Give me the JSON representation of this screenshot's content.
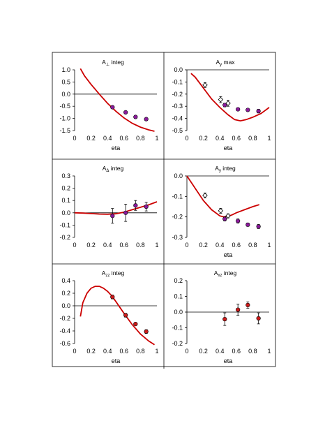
{
  "chart_data": [
    {
      "type": "scatter",
      "title": "A⊥ integ",
      "title_main": "A",
      "title_sub": "⊥",
      "title_rest": " integ",
      "xlabel": "eta",
      "ylabel": "",
      "xlim": [
        0,
        1
      ],
      "ylim": [
        -1.5,
        1.0
      ],
      "xticks": [
        0,
        0.2,
        0.4,
        0.6,
        0.8,
        1
      ],
      "xtick_labels": [
        "0",
        "0.2",
        "0.4",
        "0.6",
        "0.8",
        "1"
      ],
      "yticks": [
        1.0,
        0.5,
        0.0,
        -0.5,
        -1.0,
        -1.5
      ],
      "ytick_labels": [
        "1.0",
        "0.5",
        "0.0",
        "-0.5",
        "-1.0",
        "-1.5"
      ],
      "zero_line": true,
      "curve": {
        "x": [
          0.07,
          0.12,
          0.2,
          0.3,
          0.4,
          0.5,
          0.6,
          0.7,
          0.8,
          0.9,
          0.97
        ],
        "y": [
          1.05,
          0.75,
          0.4,
          0.0,
          -0.38,
          -0.7,
          -0.98,
          -1.2,
          -1.36,
          -1.47,
          -1.53
        ]
      },
      "points_filled": {
        "x": [
          0.46,
          0.62,
          0.74,
          0.87
        ],
        "y": [
          -0.54,
          -0.75,
          -0.94,
          -1.03
        ],
        "err": [
          0.04,
          0.04,
          0.06,
          0.04
        ]
      },
      "points_open": {
        "x": [],
        "y": [],
        "err": []
      },
      "colors": {
        "curve": "#cc0000",
        "filled": "#8a1a9a"
      }
    },
    {
      "type": "scatter",
      "title": "Ay max",
      "title_main": "A",
      "title_sub": "y",
      "title_rest": " max",
      "xlabel": "eta",
      "ylabel": "",
      "xlim": [
        0,
        1
      ],
      "ylim": [
        -0.5,
        0.0
      ],
      "xticks": [
        0,
        0.2,
        0.4,
        0.6,
        0.8,
        1
      ],
      "xtick_labels": [
        "0",
        "0.2",
        "0.4",
        "0.6",
        "0.8",
        "1"
      ],
      "yticks": [
        0.0,
        -0.1,
        -0.2,
        -0.3,
        -0.4,
        -0.5
      ],
      "ytick_labels": [
        "0.0",
        "-0.1",
        "-0.2",
        "-0.3",
        "-0.4",
        "-0.5"
      ],
      "zero_line": true,
      "curve": {
        "x": [
          0.05,
          0.1,
          0.2,
          0.3,
          0.4,
          0.5,
          0.58,
          0.65,
          0.72,
          0.8,
          0.9,
          1.0
        ],
        "y": [
          -0.03,
          -0.06,
          -0.15,
          -0.24,
          -0.31,
          -0.37,
          -0.41,
          -0.42,
          -0.41,
          -0.39,
          -0.36,
          -0.31
        ]
      },
      "points_filled": {
        "x": [
          0.46,
          0.62,
          0.74,
          0.87
        ],
        "y": [
          -0.29,
          -0.325,
          -0.33,
          -0.34
        ],
        "err": [
          0.015,
          0.012,
          0.01,
          0.015
        ]
      },
      "points_open": {
        "x": [
          0.22,
          0.41,
          0.5
        ],
        "y": [
          -0.125,
          -0.245,
          -0.275
        ],
        "err": [
          0.02,
          0.025,
          0.025
        ]
      },
      "colors": {
        "curve": "#cc0000",
        "filled": "#8a1a9a"
      }
    },
    {
      "type": "scatter",
      "title": "AΔ integ",
      "title_main": "A",
      "title_sub": "Δ",
      "title_rest": " integ",
      "xlabel": "",
      "ylabel": "",
      "xlim": [
        0,
        1
      ],
      "ylim": [
        -0.2,
        0.3
      ],
      "xticks": [
        0,
        0.2,
        0.4,
        0.6,
        0.8,
        1
      ],
      "xtick_labels": [
        "0",
        "0.2",
        "0.4",
        "0.6",
        "0.8",
        "1"
      ],
      "yticks": [
        0.3,
        0.2,
        0.1,
        0.0,
        -0.1,
        -0.2
      ],
      "ytick_labels": [
        "0.3",
        "0.2",
        "0.1",
        "0.0",
        "-0.1",
        "-0.2"
      ],
      "zero_line": true,
      "curve": {
        "x": [
          0.0,
          0.1,
          0.2,
          0.3,
          0.4,
          0.5,
          0.6,
          0.7,
          0.8,
          0.9,
          1.0
        ],
        "y": [
          0.0,
          -0.002,
          -0.006,
          -0.01,
          -0.012,
          -0.008,
          0.005,
          0.025,
          0.045,
          0.065,
          0.09
        ]
      },
      "points_filled": {
        "x": [
          0.46,
          0.62,
          0.74,
          0.87
        ],
        "y": [
          -0.025,
          0.0,
          0.06,
          0.05
        ],
        "err": [
          0.06,
          0.07,
          0.04,
          0.035
        ]
      },
      "points_open": {
        "x": [],
        "y": [],
        "err": []
      },
      "colors": {
        "curve": "#cc0000",
        "filled": "#8a1a9a"
      }
    },
    {
      "type": "scatter",
      "title": "Ay integ",
      "title_main": "A",
      "title_sub": "y",
      "title_rest": " integ",
      "xlabel": "eta",
      "ylabel": "",
      "xlim": [
        0,
        1
      ],
      "ylim": [
        -0.3,
        0.0
      ],
      "xticks": [
        0,
        0.2,
        0.4,
        0.6,
        0.8,
        1
      ],
      "xtick_labels": [
        "0",
        "0.2",
        "0.4",
        "0.6",
        "0.8",
        "1"
      ],
      "yticks": [
        0.0,
        -0.1,
        -0.2,
        -0.3
      ],
      "ytick_labels": [
        "0.0",
        "-0.1",
        "-0.2",
        "-0.3"
      ],
      "zero_line": false,
      "curve": {
        "x": [
          0.0,
          0.05,
          0.1,
          0.2,
          0.3,
          0.4,
          0.45,
          0.5,
          0.55,
          0.6,
          0.7,
          0.8,
          0.88
        ],
        "y": [
          0.0,
          -0.03,
          -0.06,
          -0.12,
          -0.165,
          -0.195,
          -0.2,
          -0.197,
          -0.19,
          -0.18,
          -0.165,
          -0.15,
          -0.14
        ]
      },
      "points_filled": {
        "x": [
          0.46,
          0.62,
          0.74,
          0.87
        ],
        "y": [
          -0.21,
          -0.22,
          -0.238,
          -0.247
        ],
        "err": [
          0.01,
          0.01,
          0.008,
          0.01
        ]
      },
      "points_open": {
        "x": [
          0.22,
          0.41,
          0.5
        ],
        "y": [
          -0.095,
          -0.17,
          -0.195
        ],
        "err": [
          0.012,
          0.012,
          0.01
        ]
      },
      "colors": {
        "curve": "#cc0000",
        "filled": "#8a1a9a"
      }
    },
    {
      "type": "scatter",
      "title": "Azz integ",
      "title_main": "A",
      "title_sub": "zz",
      "title_rest": " integ",
      "xlabel": "eta",
      "ylabel": "",
      "xlim": [
        0,
        1
      ],
      "ylim": [
        -0.6,
        0.4
      ],
      "xticks": [
        0,
        0.2,
        0.4,
        0.6,
        0.8,
        1
      ],
      "xtick_labels": [
        "0",
        "0.2",
        "0.4",
        "0.6",
        "0.8",
        "1"
      ],
      "yticks": [
        0.4,
        0.2,
        0.0,
        -0.2,
        -0.4,
        -0.6
      ],
      "ytick_labels": [
        "0.4",
        "0.2",
        "0.0",
        "-0.2",
        "-0.4",
        "-0.6"
      ],
      "zero_line": true,
      "curve": {
        "x": [
          0.07,
          0.1,
          0.15,
          0.2,
          0.25,
          0.3,
          0.35,
          0.4,
          0.45,
          0.5,
          0.6,
          0.7,
          0.8,
          0.9,
          0.97
        ],
        "y": [
          -0.17,
          0.05,
          0.2,
          0.28,
          0.31,
          0.31,
          0.28,
          0.23,
          0.16,
          0.07,
          -0.12,
          -0.3,
          -0.45,
          -0.56,
          -0.62
        ]
      },
      "points_filled": {
        "x": [
          0.46,
          0.62,
          0.74,
          0.87
        ],
        "y": [
          0.14,
          -0.15,
          -0.29,
          -0.41
        ],
        "err": [
          0.03,
          0.03,
          0.02,
          0.03
        ]
      },
      "points_open": {
        "x": [],
        "y": [],
        "err": []
      },
      "colors": {
        "curve": "#cc0000",
        "filled": "#cc1a1a"
      }
    },
    {
      "type": "scatter",
      "title": "Axz integ",
      "title_main": "A",
      "title_sub": "xz",
      "title_rest": " integ",
      "xlabel": "eta",
      "ylabel": "",
      "xlim": [
        0,
        1
      ],
      "ylim": [
        -0.2,
        0.2
      ],
      "xticks": [
        0,
        0.2,
        0.4,
        0.6,
        0.8,
        1
      ],
      "xtick_labels": [
        "0",
        "0.2",
        "0.4",
        "0.6",
        "0.8",
        "1"
      ],
      "yticks": [
        0.2,
        0.1,
        0.0,
        -0.1,
        -0.2
      ],
      "ytick_labels": [
        "0.2",
        "0.1",
        "0.0",
        "-0.1",
        "-0.2"
      ],
      "zero_line": true,
      "curve": {
        "x": [],
        "y": []
      },
      "points_filled": {
        "x": [
          0.46,
          0.62,
          0.74,
          0.87
        ],
        "y": [
          -0.045,
          0.015,
          0.045,
          -0.04
        ],
        "err": [
          0.04,
          0.035,
          0.02,
          0.035
        ]
      },
      "points_open": {
        "x": [],
        "y": [],
        "err": []
      },
      "colors": {
        "curve": "#cc0000",
        "filled": "#cc1a1a"
      }
    }
  ]
}
